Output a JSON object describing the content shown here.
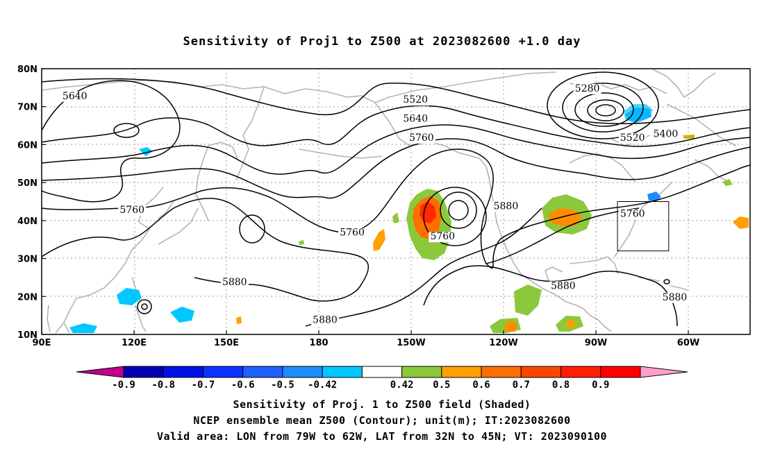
{
  "title": "Sensitivity of Proj1 to Z500 at 2023082600 +1.0 day",
  "lat_labels": [
    "80N",
    "70N",
    "60N",
    "50N",
    "40N",
    "30N",
    "20N",
    "10N"
  ],
  "lon_labels": [
    "90E",
    "120E",
    "150E",
    "180",
    "150W",
    "120W",
    "90W",
    "60W"
  ],
  "contour_labels": [
    {
      "text": "5640",
      "lon": 101,
      "lat": 72
    },
    {
      "text": "5520",
      "lon": -146,
      "lat": 71
    },
    {
      "text": "5640",
      "lon": -146,
      "lat": 66
    },
    {
      "text": "5760",
      "lon": -144,
      "lat": 61
    },
    {
      "text": "5280",
      "lon": -89,
      "lat": 74
    },
    {
      "text": "5400",
      "lon": -63,
      "lat": 62
    },
    {
      "text": "5520",
      "lon": -74,
      "lat": 61
    },
    {
      "text": "5760",
      "lon": 120,
      "lat": 42
    },
    {
      "text": "5760",
      "lon": -167,
      "lat": 36
    },
    {
      "text": "5760",
      "lon": -137,
      "lat": 35
    },
    {
      "text": "5880",
      "lon": -116,
      "lat": 43
    },
    {
      "text": "5760",
      "lon": -74,
      "lat": 41
    },
    {
      "text": "5880",
      "lon": 154,
      "lat": 23
    },
    {
      "text": "5880",
      "lon": -176,
      "lat": 13
    },
    {
      "text": "5880",
      "lon": -97,
      "lat": 22
    },
    {
      "text": "5880",
      "lon": -60,
      "lat": 19
    }
  ],
  "colorbar": {
    "colors": [
      "#c0008c",
      "#0000b4",
      "#0010e6",
      "#0a32ff",
      "#1e60ff",
      "#1e8cff",
      "#00c8ff",
      "#ffffff",
      "#8cc83c",
      "#ffa000",
      "#ff6e00",
      "#ff4600",
      "#ff1e00",
      "#ff0000",
      "#ffa0c8"
    ],
    "labels": [
      "-0.9",
      "-0.8",
      "-0.7",
      "-0.6",
      "-0.5",
      "-0.42",
      "0.42",
      "0.5",
      "0.6",
      "0.7",
      "0.8",
      "0.9"
    ]
  },
  "valid_box": {
    "lon_w": -79,
    "lon_e": -62,
    "lat_s": 32,
    "lat_n": 45
  },
  "captions": [
    "Sensitivity of Proj. 1 to Z500 field (Shaded)",
    "NCEP ensemble mean Z500 (Contour); unit(m); IT:2023082600",
    "Valid area: LON from 79W to 62W, LAT from 32N to 45N; VT: 2023090100"
  ]
}
